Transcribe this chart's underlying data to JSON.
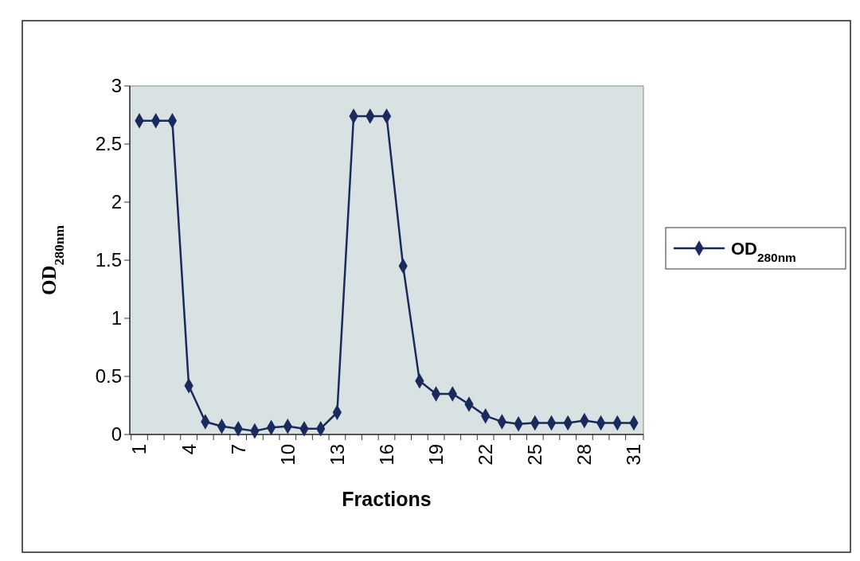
{
  "chart_data": {
    "type": "line",
    "xlabel": "Fractions",
    "ylabel": "OD$_{280nm}$",
    "categories": [
      "1",
      null,
      null,
      "4",
      null,
      null,
      "7",
      null,
      null,
      "10",
      null,
      null,
      "13",
      null,
      null,
      "16",
      null,
      null,
      "19",
      null,
      null,
      "22",
      null,
      null,
      "25",
      null,
      null,
      "28",
      null,
      null,
      "31"
    ],
    "series": [
      {
        "name": "OD$_{280nm}$",
        "color": "#1b2a5c",
        "values": [
          2.7,
          2.7,
          2.7,
          0.42,
          0.11,
          0.07,
          0.05,
          0.03,
          0.06,
          0.07,
          0.05,
          0.05,
          0.19,
          2.74,
          2.74,
          2.74,
          1.45,
          0.46,
          0.35,
          0.35,
          0.26,
          0.16,
          0.11,
          0.09,
          0.1,
          0.1,
          0.1,
          0.12,
          0.1,
          0.1,
          0.1
        ]
      }
    ],
    "ylim": [
      0,
      3
    ],
    "yticks": [
      0,
      0.5,
      1,
      1.5,
      2,
      2.5,
      3
    ],
    "marker": "diamond",
    "line_style": "solid",
    "legend": "right",
    "grid": false
  }
}
